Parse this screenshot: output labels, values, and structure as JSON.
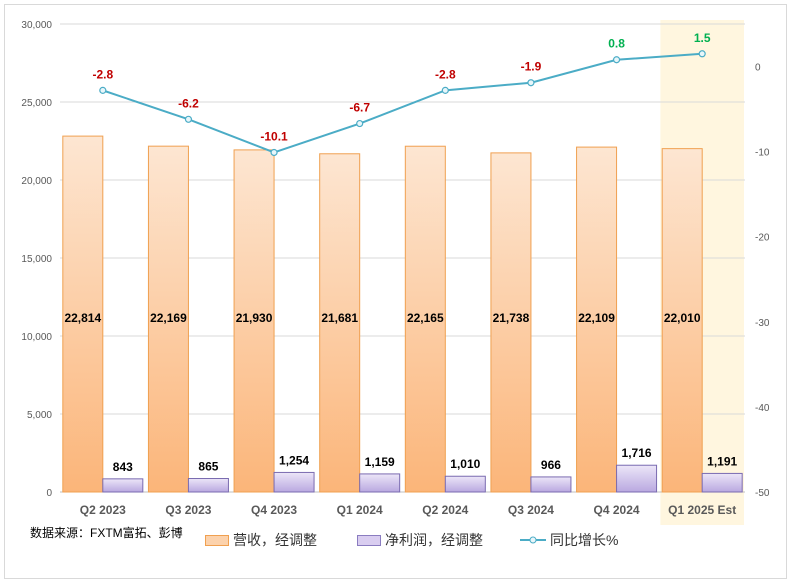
{
  "chart_data": {
    "type": "bar+line",
    "categories": [
      "Q2 2023",
      "Q3 2023",
      "Q4 2023",
      "Q1 2024",
      "Q2 2024",
      "Q3 2024",
      "Q4 2024",
      "Q1 2025 Est"
    ],
    "highlighted_category": "Q1 2025 Est",
    "series": [
      {
        "name": "营收，经调整",
        "type": "bar",
        "axis": "left",
        "values": [
          22814,
          22169,
          21930,
          21681,
          22165,
          21738,
          22109,
          22010
        ],
        "labels": [
          "22,814",
          "22,169",
          "21,930",
          "21,681",
          "22,165",
          "21,738",
          "22,109",
          "22,010"
        ],
        "color": "#f9b98a"
      },
      {
        "name": "净利润，经调整",
        "type": "bar",
        "axis": "left",
        "values": [
          843,
          865,
          1254,
          1159,
          1010,
          966,
          1716,
          1191
        ],
        "labels": [
          "843",
          "865",
          "1,254",
          "1,159",
          "1,010",
          "966",
          "1,716",
          "1,191"
        ],
        "color": "#c9b8e8"
      },
      {
        "name": "同比增长%",
        "type": "line",
        "axis": "right",
        "values": [
          -2.8,
          -6.2,
          -10.1,
          -6.7,
          -2.8,
          -1.9,
          0.8,
          1.5
        ],
        "labels": [
          "-2.8",
          "-6.2",
          "-10.1",
          "-6.7",
          "-2.8",
          "-1.9",
          "0.8",
          "1.5"
        ],
        "color": "#4bacc6",
        "negative_label_color": "#c00000",
        "positive_label_color": "#00b050"
      }
    ],
    "left_axis": {
      "range": [
        0,
        30000
      ],
      "ticks": [
        "0",
        "5,000",
        "10,000",
        "15,000",
        "20,000",
        "25,000",
        "30,000"
      ]
    },
    "right_axis": {
      "range": [
        -50,
        5
      ],
      "ticks": [
        "0",
        "-10",
        "-20",
        "-30",
        "-40",
        "-50"
      ]
    },
    "grid": true,
    "legend_position": "bottom"
  },
  "source_note": "数据来源：FXTM富拓、彭博"
}
